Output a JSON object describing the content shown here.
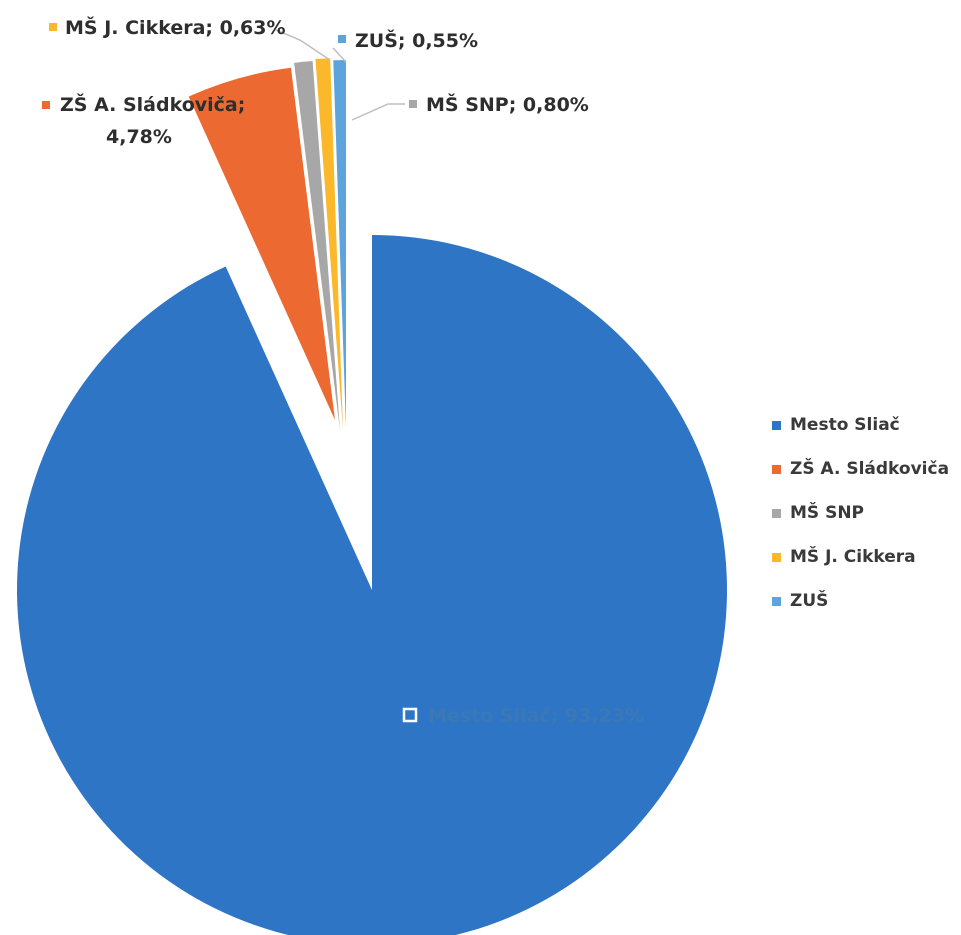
{
  "chart_data": {
    "type": "pie",
    "title": "",
    "series": [
      {
        "name": "Mesto Sliač",
        "value": 93.23,
        "label": "Mesto Sliač; 93,23%",
        "color": "#2e75c6"
      },
      {
        "name": "ZŠ A. Sládkoviča",
        "value": 4.78,
        "label_line1": "ZŠ A. Sládkoviča;",
        "label_line2": "4,78%",
        "color": "#ec6a32"
      },
      {
        "name": "MŠ SNP",
        "value": 0.8,
        "label": "MŠ SNP; 0,80%",
        "color": "#a7a7a7"
      },
      {
        "name": "MŠ J. Cikkera",
        "value": 0.63,
        "label": "MŠ J. Cikkera; 0,63%",
        "color": "#fbb82b"
      },
      {
        "name": "ZUŠ",
        "value": 0.55,
        "label": "ZUŠ; 0,55%",
        "color": "#5ea4dc"
      }
    ],
    "legend": {
      "placement": "right",
      "entries": [
        "Mesto Sliač",
        "ZŠ A. Sládkoviča",
        "MŠ SNP",
        "MŠ J. Cikkera",
        "ZUŠ"
      ]
    },
    "exploded": true
  }
}
